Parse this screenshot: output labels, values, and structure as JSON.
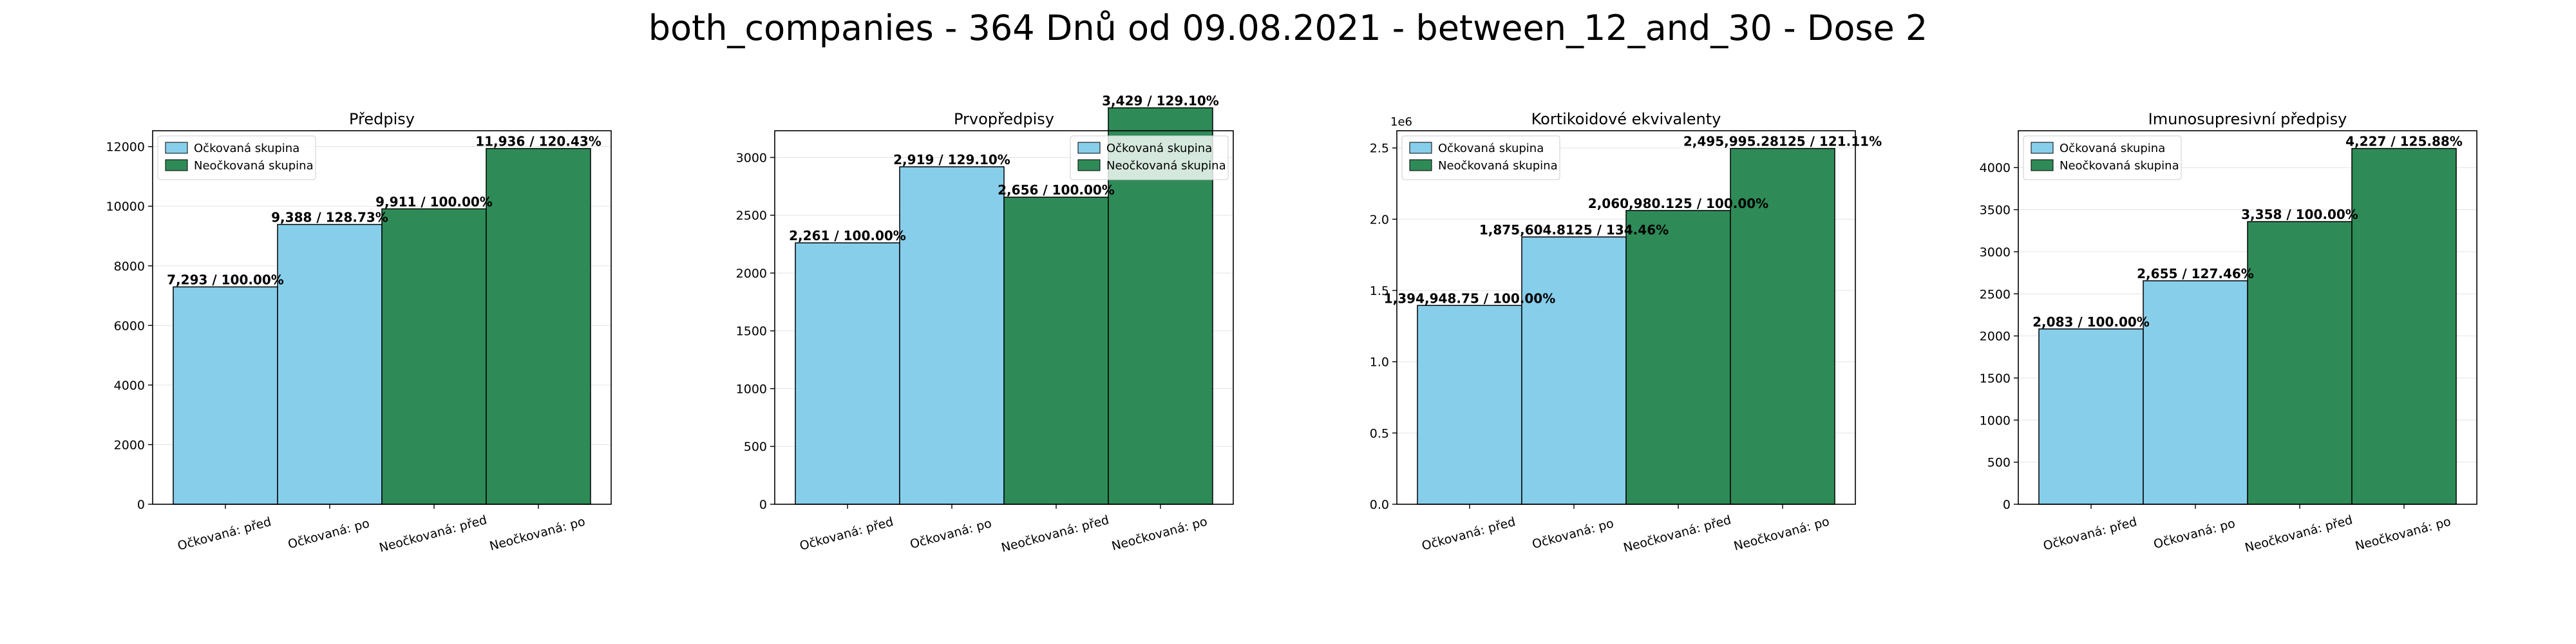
{
  "figure": {
    "title": "both_companies - 364 Dnů od 09.08.2021 - between_12_and_30 - Dose 2"
  },
  "legend": {
    "placement": "upper-left",
    "entries": [
      {
        "label": "Očkovaná skupina",
        "color": "#87CEEB"
      },
      {
        "label": "Neočkovaná skupina",
        "color": "#2E8B57"
      }
    ]
  },
  "chart_data": [
    {
      "type": "bar",
      "title": "Předpisy",
      "categories": [
        "Očkovaná: před",
        "Očkovaná: po",
        "Neočkovaná: před",
        "Neočkovaná: po"
      ],
      "values": [
        7293,
        9388,
        9911,
        11936
      ],
      "bar_colors": [
        "#87CEEB",
        "#87CEEB",
        "#2E8B57",
        "#2E8B57"
      ],
      "data_labels": [
        "7,293 / 100.00%",
        "9,388 / 128.73%",
        "9,911 / 100.00%",
        "11,936 / 120.43%"
      ],
      "ylim": [
        0,
        12533
      ],
      "yticks": [
        0,
        2000,
        4000,
        6000,
        8000,
        10000,
        12000
      ],
      "ytick_labels": [
        "0",
        "2000",
        "4000",
        "6000",
        "8000",
        "10000",
        "12000"
      ],
      "y_offset_label": "",
      "grid": true,
      "legend_placement": "upper-left"
    },
    {
      "type": "bar",
      "title": "Prvopředpisy",
      "categories": [
        "Očkovaná: před",
        "Očkovaná: po",
        "Neočkovaná: před",
        "Neočkovaná: po"
      ],
      "values": [
        2261,
        2919,
        2656,
        3429
      ],
      "bar_colors": [
        "#87CEEB",
        "#87CEEB",
        "#2E8B57",
        "#2E8B57"
      ],
      "data_labels": [
        "2,261 / 100.00%",
        "2,919 / 129.10%",
        "2,656 / 100.00%",
        "3,429 / 129.10%"
      ],
      "ylim": [
        0,
        3231
      ],
      "yticks": [
        0,
        500,
        1000,
        1500,
        2000,
        2500,
        3000
      ],
      "ytick_labels": [
        "0",
        "500",
        "1000",
        "1500",
        "2000",
        "2500",
        "3000"
      ],
      "y_offset_label": "",
      "grid": true,
      "legend_placement": "upper-right"
    },
    {
      "type": "bar",
      "title": "Kortikoidové ekvivalenty",
      "categories": [
        "Očkovaná: před",
        "Očkovaná: po",
        "Neočkovaná: před",
        "Neočkovaná: po"
      ],
      "values": [
        1394948.75,
        1875604.8125,
        2060980.125,
        2495995.28125
      ],
      "bar_colors": [
        "#87CEEB",
        "#87CEEB",
        "#2E8B57",
        "#2E8B57"
      ],
      "data_labels": [
        "1,394,948.75 / 100.00%",
        "1,875,604.8125 / 134.46%",
        "2,060,980.125 / 100.00%",
        "2,495,995.28125 / 121.11%"
      ],
      "ylim": [
        0,
        2620795
      ],
      "yticks": [
        0,
        500000,
        1000000,
        1500000,
        2000000,
        2500000
      ],
      "ytick_labels": [
        "0.0",
        "0.5",
        "1.0",
        "1.5",
        "2.0",
        "2.5"
      ],
      "y_offset_label": "1e6",
      "grid": true,
      "legend_placement": "upper-left"
    },
    {
      "type": "bar",
      "title": "Imunosupresivní předpisy",
      "categories": [
        "Očkovaná: před",
        "Očkovaná: po",
        "Neočkovaná: před",
        "Neočkovaná: po"
      ],
      "values": [
        2083,
        2655,
        3358,
        4227
      ],
      "bar_colors": [
        "#87CEEB",
        "#87CEEB",
        "#2E8B57",
        "#2E8B57"
      ],
      "data_labels": [
        "2,083 / 100.00%",
        "2,655 / 127.46%",
        "3,358 / 100.00%",
        "4,227 / 125.88%"
      ],
      "ylim": [
        0,
        4438
      ],
      "yticks": [
        0,
        500,
        1000,
        1500,
        2000,
        2500,
        3000,
        3500,
        4000
      ],
      "ytick_labels": [
        "0",
        "500",
        "1000",
        "1500",
        "2000",
        "2500",
        "3000",
        "3500",
        "4000"
      ],
      "y_offset_label": "",
      "grid": true,
      "legend_placement": "upper-left"
    }
  ]
}
